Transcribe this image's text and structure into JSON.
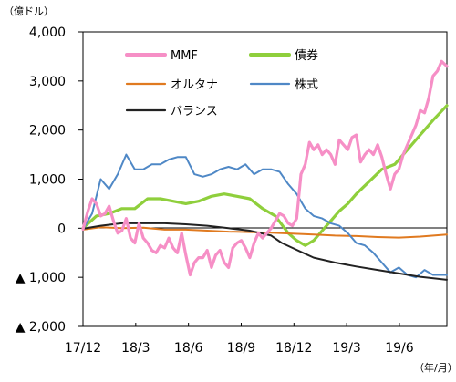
{
  "chart_data": {
    "type": "line",
    "y_unit": "（億ドル）",
    "x_unit": "（年/月）",
    "ylim": [
      -2000,
      4000
    ],
    "y_ticks": [
      {
        "value": 4000,
        "label": "4,000"
      },
      {
        "value": 3000,
        "label": "3,000"
      },
      {
        "value": 2000,
        "label": "2,000"
      },
      {
        "value": 1000,
        "label": "1,000"
      },
      {
        "value": 0,
        "label": "0"
      },
      {
        "value": -1000,
        "label": "▲ 1,000"
      },
      {
        "value": -2000,
        "label": "▲ 2,000"
      }
    ],
    "x_ticks": [
      "17/12",
      "18/3",
      "18/6",
      "18/9",
      "18/12",
      "19/3",
      "19/6"
    ],
    "x_range_months": [
      2017.917,
      2019.625
    ],
    "legend_placement": "top",
    "grid": false,
    "series": [
      {
        "name": "MMF",
        "color": "#f68fc6",
        "x": [
          2017.917,
          2017.94,
          2017.96,
          2017.98,
          2018.0,
          2018.02,
          2018.04,
          2018.06,
          2018.08,
          2018.1,
          2018.12,
          2018.14,
          2018.16,
          2018.18,
          2018.2,
          2018.22,
          2018.24,
          2018.26,
          2018.28,
          2018.3,
          2018.32,
          2018.34,
          2018.36,
          2018.38,
          2018.4,
          2018.42,
          2018.44,
          2018.46,
          2018.48,
          2018.5,
          2018.52,
          2018.54,
          2018.56,
          2018.58,
          2018.6,
          2018.62,
          2018.64,
          2018.66,
          2018.68,
          2018.7,
          2018.72,
          2018.74,
          2018.76,
          2018.78,
          2018.8,
          2018.82,
          2018.84,
          2018.86,
          2018.88,
          2018.9,
          2018.92,
          2018.94,
          2018.96,
          2018.98,
          2019.0,
          2019.02,
          2019.04,
          2019.06,
          2019.08,
          2019.1,
          2019.12,
          2019.14,
          2019.16,
          2019.18,
          2019.2,
          2019.22,
          2019.24,
          2019.26,
          2019.28,
          2019.3,
          2019.32,
          2019.34,
          2019.36,
          2019.38,
          2019.4,
          2019.42,
          2019.44,
          2019.46,
          2019.48,
          2019.5,
          2019.52,
          2019.54,
          2019.56,
          2019.58,
          2019.6,
          2019.625
        ],
        "values": [
          -20,
          350,
          600,
          500,
          250,
          300,
          450,
          150,
          -100,
          -50,
          200,
          -200,
          -300,
          100,
          -200,
          -300,
          -450,
          -500,
          -350,
          -400,
          -200,
          -400,
          -500,
          -100,
          -550,
          -950,
          -700,
          -600,
          -600,
          -450,
          -800,
          -550,
          -450,
          -700,
          -800,
          -400,
          -300,
          -250,
          -400,
          -600,
          -300,
          -100,
          -200,
          -100,
          0,
          150,
          300,
          250,
          100,
          50,
          200,
          1100,
          1300,
          1750,
          1600,
          1700,
          1500,
          1600,
          1500,
          1300,
          1800,
          1700,
          1600,
          1850,
          1900,
          1350,
          1500,
          1600,
          1500,
          1700,
          1450,
          1100,
          800,
          1100,
          1200,
          1500,
          1700,
          1900,
          2100,
          2400,
          2350,
          2650,
          3100,
          3200,
          3400,
          3300
        ]
      },
      {
        "name": "債券",
        "color": "#8fcf3c",
        "x": [
          2017.917,
          2017.98,
          2018.04,
          2018.1,
          2018.16,
          2018.22,
          2018.28,
          2018.34,
          2018.4,
          2018.46,
          2018.52,
          2018.58,
          2018.64,
          2018.7,
          2018.76,
          2018.82,
          2018.88,
          2018.92,
          2018.96,
          2019.0,
          2019.04,
          2019.08,
          2019.12,
          2019.16,
          2019.2,
          2019.26,
          2019.32,
          2019.38,
          2019.44,
          2019.5,
          2019.56,
          2019.625
        ],
        "values": [
          0,
          250,
          300,
          400,
          400,
          600,
          600,
          550,
          500,
          550,
          650,
          700,
          650,
          600,
          400,
          250,
          -100,
          -250,
          -350,
          -250,
          -50,
          150,
          350,
          500,
          700,
          950,
          1200,
          1300,
          1600,
          1900,
          2200,
          2500
        ]
      },
      {
        "name": "オルタナ",
        "color": "#e07a20",
        "x": [
          2017.917,
          2018.0,
          2018.1,
          2018.2,
          2018.3,
          2018.4,
          2018.5,
          2018.6,
          2018.7,
          2018.8,
          2018.9,
          2019.0,
          2019.1,
          2019.2,
          2019.3,
          2019.4,
          2019.5,
          2019.625
        ],
        "values": [
          -30,
          20,
          0,
          10,
          -30,
          -30,
          -50,
          -70,
          -80,
          -90,
          -110,
          -130,
          -150,
          -160,
          -180,
          -190,
          -170,
          -130
        ]
      },
      {
        "name": "株式",
        "color": "#4f88c6",
        "x": [
          2017.917,
          2017.96,
          2018.0,
          2018.04,
          2018.08,
          2018.12,
          2018.16,
          2018.2,
          2018.24,
          2018.28,
          2018.32,
          2018.36,
          2018.4,
          2018.44,
          2018.48,
          2018.52,
          2018.56,
          2018.6,
          2018.64,
          2018.68,
          2018.72,
          2018.76,
          2018.8,
          2018.84,
          2018.88,
          2018.92,
          2018.96,
          2019.0,
          2019.04,
          2019.08,
          2019.12,
          2019.16,
          2019.2,
          2019.24,
          2019.28,
          2019.32,
          2019.36,
          2019.4,
          2019.44,
          2019.48,
          2019.52,
          2019.56,
          2019.6,
          2019.625
        ],
        "values": [
          -20,
          300,
          1000,
          800,
          1100,
          1500,
          1200,
          1200,
          1300,
          1300,
          1400,
          1450,
          1450,
          1100,
          1050,
          1100,
          1200,
          1250,
          1200,
          1300,
          1100,
          1200,
          1200,
          1150,
          900,
          700,
          400,
          250,
          200,
          100,
          50,
          -100,
          -300,
          -350,
          -500,
          -700,
          -900,
          -800,
          -950,
          -1000,
          -850,
          -950,
          -950,
          -950
        ]
      },
      {
        "name": "バランス",
        "color": "#222222",
        "x": [
          2017.917,
          2018.0,
          2018.1,
          2018.2,
          2018.3,
          2018.4,
          2018.5,
          2018.6,
          2018.7,
          2018.8,
          2018.85,
          2018.9,
          2018.95,
          2019.0,
          2019.1,
          2019.2,
          2019.3,
          2019.4,
          2019.5,
          2019.625
        ],
        "values": [
          -10,
          50,
          100,
          100,
          100,
          80,
          50,
          0,
          -50,
          -150,
          -300,
          -400,
          -500,
          -600,
          -700,
          -780,
          -850,
          -920,
          -990,
          -1050
        ]
      }
    ],
    "legend": [
      {
        "name": "MMF",
        "color": "#f68fc6"
      },
      {
        "name": "債券",
        "color": "#8fcf3c"
      },
      {
        "name": "オルタナ",
        "color": "#e07a20"
      },
      {
        "name": "株式",
        "color": "#4f88c6"
      },
      {
        "name": "バランス",
        "color": "#222222"
      }
    ]
  }
}
